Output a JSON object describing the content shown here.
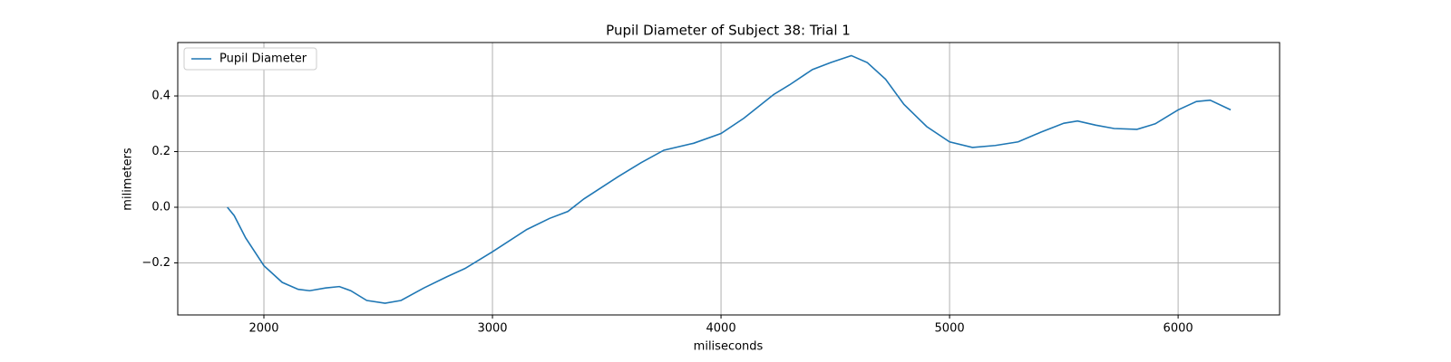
{
  "chart_data": {
    "type": "line",
    "title": "Pupil Diameter of Subject 38: Trial 1",
    "xlabel": "miliseconds",
    "ylabel": "milimeters",
    "x": [
      1840,
      1870,
      1920,
      2000,
      2080,
      2150,
      2200,
      2270,
      2330,
      2380,
      2450,
      2530,
      2600,
      2700,
      2800,
      2880,
      3000,
      3150,
      3250,
      3330,
      3400,
      3550,
      3650,
      3750,
      3880,
      4000,
      4100,
      4230,
      4300,
      4400,
      4480,
      4570,
      4640,
      4720,
      4800,
      4900,
      5000,
      5100,
      5200,
      5300,
      5400,
      5500,
      5560,
      5640,
      5720,
      5820,
      5900,
      6000,
      6080,
      6140,
      6230
    ],
    "series": [
      {
        "name": "Pupil Diameter",
        "color": "#1f77b4",
        "values": [
          0.0,
          -0.03,
          -0.11,
          -0.21,
          -0.27,
          -0.295,
          -0.3,
          -0.29,
          -0.285,
          -0.3,
          -0.335,
          -0.345,
          -0.335,
          -0.29,
          -0.25,
          -0.22,
          -0.16,
          -0.08,
          -0.04,
          -0.015,
          0.03,
          0.11,
          0.16,
          0.205,
          0.23,
          0.265,
          0.32,
          0.405,
          0.44,
          0.495,
          0.52,
          0.545,
          0.52,
          0.46,
          0.37,
          0.29,
          0.235,
          0.215,
          0.222,
          0.235,
          0.27,
          0.302,
          0.31,
          0.295,
          0.283,
          0.28,
          0.3,
          0.35,
          0.38,
          0.385,
          0.35
        ]
      }
    ],
    "xlim": [
      1623,
      6444
    ],
    "xticks": [
      2000,
      3000,
      4000,
      5000,
      6000
    ],
    "ylim": [
      -0.387,
      0.592
    ],
    "yticks": [
      {
        "value": -0.2,
        "label": "−0.2"
      },
      {
        "value": 0,
        "label": "0.0"
      },
      0.2,
      0.4
    ],
    "grid": true,
    "legend": "upper left"
  }
}
